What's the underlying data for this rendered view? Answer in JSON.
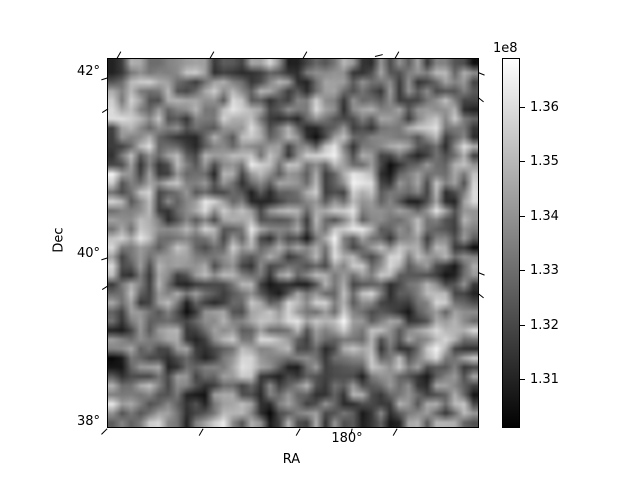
{
  "chart_data": {
    "type": "heatmap",
    "title": "",
    "xlabel": "RA",
    "ylabel": "Dec",
    "x_tick_labels": [
      "180°"
    ],
    "y_tick_labels": [
      "42°",
      "40°",
      "38°"
    ],
    "colormap": "gray",
    "colorbar": {
      "offset_label": "1e8",
      "tick_labels": [
        "1.36",
        "1.35",
        "1.34",
        "1.33",
        "1.32",
        "1.31"
      ],
      "vmin": 130100000,
      "vmax": 136900000
    },
    "grid_rows": 40,
    "grid_cols": 40,
    "noise_seed": 1337,
    "description": "Random grayscale intensity map plotted over RA/Dec sky coordinates"
  }
}
